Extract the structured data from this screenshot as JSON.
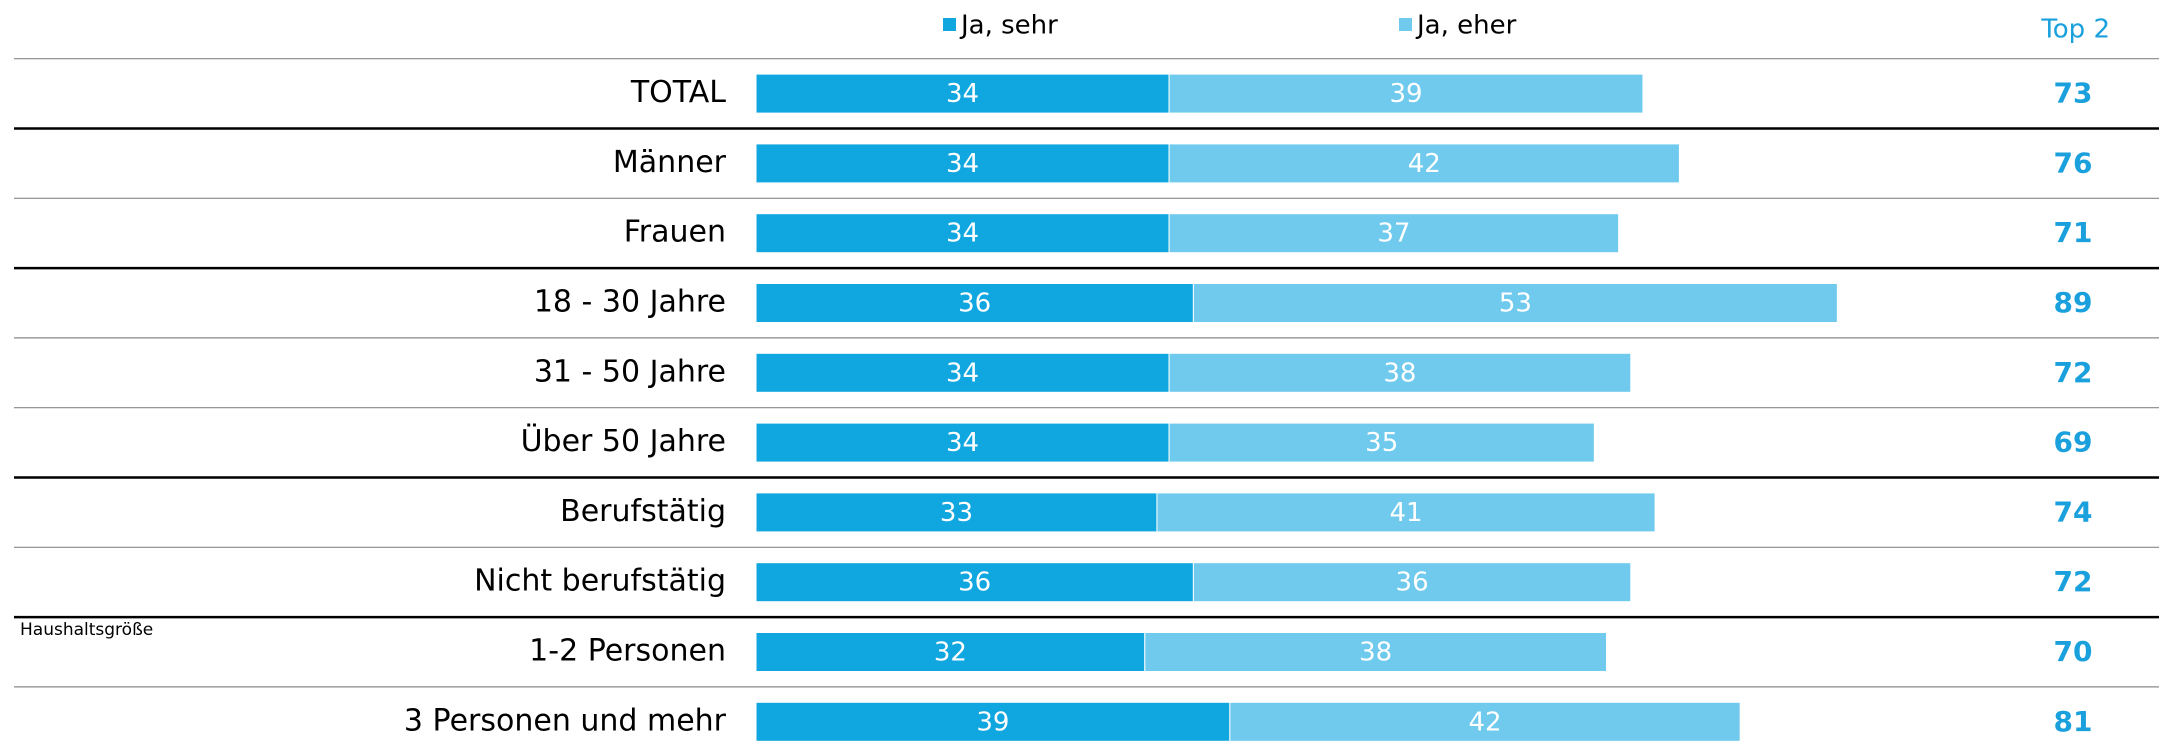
{
  "chart_data": {
    "type": "stacked_bar_horizontal",
    "categories": [
      "TOTAL",
      "Männer",
      "Frauen",
      "18 - 30 Jahre",
      "31 - 50 Jahre",
      "Über 50 Jahre",
      "Berufstätig",
      "Nicht berufstätig",
      "1-2 Personen",
      "3 Personen und mehr"
    ],
    "series": [
      {
        "name": "Ja, sehr",
        "color": "#10a6e0",
        "values": [
          34,
          34,
          34,
          36,
          34,
          34,
          33,
          36,
          32,
          39
        ]
      },
      {
        "name": "Ja, eher",
        "color": "#6fcaee",
        "values": [
          39,
          42,
          37,
          53,
          38,
          35,
          41,
          36,
          38,
          42
        ]
      }
    ],
    "totals_header": "Top 2",
    "totals": [
      73,
      76,
      71,
      89,
      72,
      69,
      74,
      72,
      70,
      81
    ],
    "annotation": "Haushaltsgröße",
    "xlim": [
      0,
      100
    ]
  }
}
